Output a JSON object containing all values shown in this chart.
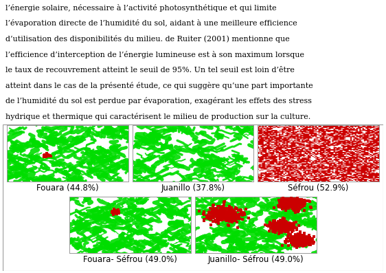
{
  "text_lines": [
    "l’énergie solaire, nécessaire à l’activité photosynthétique et qui limite",
    "l’évaporation directe de l’humidité du sol, aidant à une meilleure efficience",
    "d’utilisation des disponibilités du milieu. de Ruiter (2001) mentionne que",
    "l’efficience d’interception de l’énergie lumineuse est à son maximum lorsque",
    "le taux de recouvrement atteint le seuil de 95%. Un tel seuil est loin d’être",
    "atteint dans le cas de la présenté étude, ce qui suggère qu’une part importante",
    "de l’humidité du sol est perdue par évaporation, exagérant les effets des stress",
    "hydrique et thermique qui caractérisent le milieu de production sur la culture."
  ],
  "panels": [
    {
      "label": "Fouara (44.8%)",
      "row": 0,
      "col": 0,
      "green_density": 0.45,
      "red_density": 0.02,
      "style": "green_strokes"
    },
    {
      "label": "Juanillo (37.8%)",
      "row": 0,
      "col": 1,
      "green_density": 0.38,
      "red_density": 0.0,
      "style": "green_strokes_sparse"
    },
    {
      "label": "Séfrou (52.9%)",
      "row": 0,
      "col": 2,
      "green_density": 0.0,
      "red_density": 0.53,
      "style": "dense_red_mottled"
    },
    {
      "label": "Fouara- Séfrou (49.0%)",
      "row": 1,
      "col": 0,
      "green_density": 0.49,
      "red_density": 0.04,
      "style": "green_strokes_small_red"
    },
    {
      "label": "Juanillo- Séfrou (49.0%)",
      "row": 1,
      "col": 1,
      "green_density": 0.49,
      "red_density": 0.18,
      "style": "green_strokes_large_red"
    }
  ],
  "green": "#00dd00",
  "red": "#cc0000",
  "white": "#ffffff",
  "text_fontsize": 8.0,
  "label_fontsize": 8.5,
  "fig_width": 5.62,
  "fig_height": 3.97,
  "dpi": 100
}
